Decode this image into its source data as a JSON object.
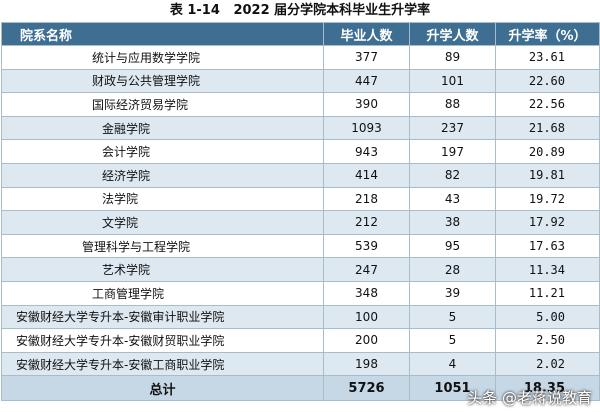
{
  "caption": "表 1-14   2022 届分学院本科毕业生升学率",
  "headers": [
    "院系名称",
    "毕业人数",
    "升学人数",
    "升学率（%）"
  ],
  "rows": [
    {
      "name": "统计与应用数学学院",
      "graduates": "377",
      "further": "89",
      "rate": "23.61"
    },
    {
      "name": "财政与公共管理学院",
      "graduates": "447",
      "further": "101",
      "rate": "22.60"
    },
    {
      "name": "国际经济贸易学院",
      "graduates": "390",
      "further": "88",
      "rate": "22.56"
    },
    {
      "name": "金融学院",
      "graduates": "1093",
      "further": "237",
      "rate": "21.68"
    },
    {
      "name": "会计学院",
      "graduates": "943",
      "further": "197",
      "rate": "20.89"
    },
    {
      "name": "经济学院",
      "graduates": "414",
      "further": "82",
      "rate": "19.81"
    },
    {
      "name": "法学院",
      "graduates": "218",
      "further": "43",
      "rate": "19.72"
    },
    {
      "name": "文学院",
      "graduates": "212",
      "further": "38",
      "rate": "17.92"
    },
    {
      "name": "管理科学与工程学院",
      "graduates": "539",
      "further": "95",
      "rate": "17.63"
    },
    {
      "name": "艺术学院",
      "graduates": "247",
      "further": "28",
      "rate": "11.34"
    },
    {
      "name": "工商管理学院",
      "graduates": "348",
      "further": "39",
      "rate": "11.21"
    },
    {
      "name": "安徽财经大学专升本-安徽审计职业学院",
      "graduates": "100",
      "further": "5",
      "rate": "5.00"
    },
    {
      "name": "安徽财经大学专升本-安徽财贸职业学院",
      "graduates": "200",
      "further": "5",
      "rate": "2.50"
    },
    {
      "name": "安徽财经大学专升本-安徽工商职业学院",
      "graduates": "198",
      "further": "4",
      "rate": "2.02"
    }
  ],
  "total": {
    "label": "总计",
    "graduates": "5726",
    "further": "1051",
    "rate": "18.35"
  },
  "watermark": "头条 @老蒋说教育",
  "colors": {
    "header_bg": "#3e6f93",
    "stripe": "#dde8f1",
    "total_bg": "#c6d7e5"
  }
}
